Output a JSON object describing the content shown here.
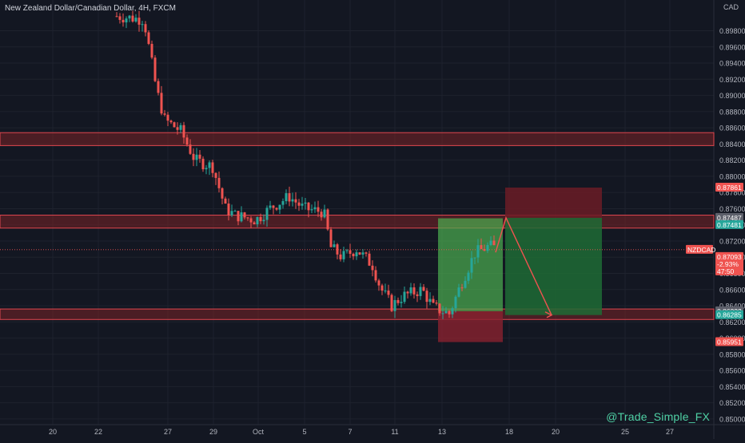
{
  "header": {
    "title": "New Zealand Dollar/Canadian Dollar, 4H, FXCM",
    "currency": "CAD"
  },
  "watermark": "@Trade_Simple_FX",
  "colors": {
    "background": "#131722",
    "bull": "#26a69a",
    "bear": "#ef5350",
    "zone_fill": "#7a2327",
    "zone_border": "#e0474f",
    "profit_fill": "#1f6b35",
    "profit_fill_bright": "#4caf50",
    "loss_fill": "#6b1c26",
    "projection": "#ef5350",
    "axis_text": "#b2b5be"
  },
  "chart_data": {
    "type": "candlestick",
    "symbol": "NZDCAD",
    "timeframe": "4H",
    "y_ticks": [
      "0.85000",
      "0.85200",
      "0.85400",
      "0.85600",
      "0.85800",
      "0.86000",
      "0.86200",
      "0.86400",
      "0.86600",
      "0.86800",
      "0.87000",
      "0.87200",
      "0.87400",
      "0.87600",
      "0.87800",
      "0.88000",
      "0.88200",
      "0.88400",
      "0.88600",
      "0.88800",
      "0.89000",
      "0.89200",
      "0.89400",
      "0.89600",
      "0.89800"
    ],
    "x_ticks": [
      "20",
      "22",
      "27",
      "29",
      "Oct",
      "5",
      "7",
      "11",
      "13",
      "18",
      "20",
      "25",
      "27"
    ],
    "ylim": [
      0.8493,
      0.9018
    ],
    "price_labels": [
      {
        "label": "0.87861",
        "value": 0.87861,
        "color": "#ef5350"
      },
      {
        "label": "0.87487",
        "value": 0.87487,
        "color": "#5d606b"
      },
      {
        "label": "0.87481",
        "value": 0.87481,
        "color": "#26a69a"
      },
      {
        "label": "NZDCAD",
        "value": 0.87093,
        "color": "#ef5350"
      },
      {
        "label": "0.87093",
        "value": 0.87093,
        "color": "#ef5350"
      },
      {
        "label": "-2.93%",
        "value": 0.86983,
        "color": "#ef5350"
      },
      {
        "label": "47:50",
        "value": 0.86888,
        "color": "#ef5350"
      },
      {
        "label": "0.86332",
        "value": 0.86332,
        "color": "#5d606b"
      },
      {
        "label": "0.86285",
        "value": 0.86285,
        "color": "#26a69a"
      },
      {
        "label": "0.85951",
        "value": 0.85951,
        "color": "#ef5350"
      }
    ],
    "resistance_zones": [
      {
        "top": 0.8854,
        "bottom": 0.8838
      },
      {
        "top": 0.8752,
        "bottom": 0.8736
      }
    ],
    "support_zones": [
      {
        "top": 0.8636,
        "bottom": 0.8623
      }
    ],
    "long_position": {
      "entry": 0.86332,
      "target": 0.87481,
      "stop": 0.85951
    },
    "short_position": {
      "entry": 0.87487,
      "stop": 0.87861,
      "target": 0.86285
    },
    "current_price": 0.87093,
    "change": "-2.93%",
    "countdown": "47:50"
  }
}
